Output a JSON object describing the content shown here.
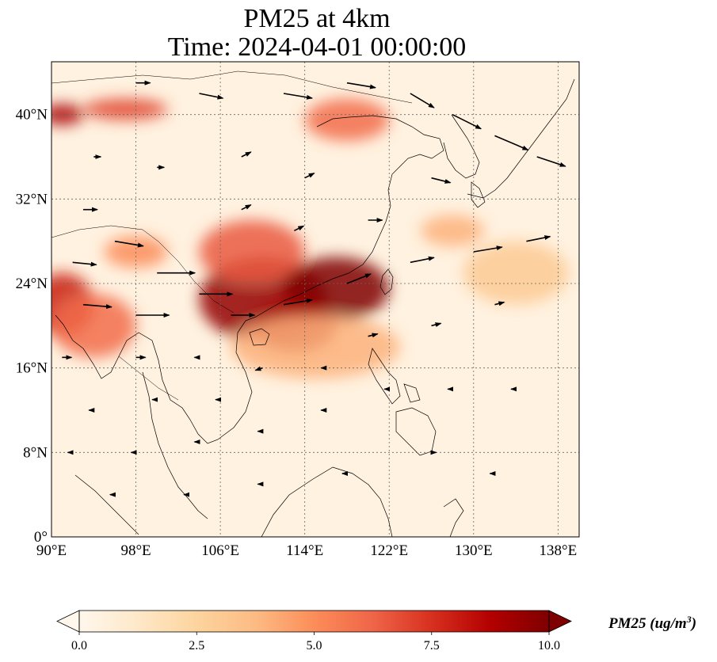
{
  "title": {
    "line1": "PM25 at 4km",
    "line2": "Time: 2024-04-01 00:00:00"
  },
  "map": {
    "lon_range": [
      90,
      140
    ],
    "lat_range": [
      0,
      45
    ],
    "lon_ticks": [
      {
        "value": 90,
        "label": "90°E"
      },
      {
        "value": 98,
        "label": "98°E"
      },
      {
        "value": 106,
        "label": "106°E"
      },
      {
        "value": 114,
        "label": "114°E"
      },
      {
        "value": 122,
        "label": "122°E"
      },
      {
        "value": 130,
        "label": "130°E"
      },
      {
        "value": 138,
        "label": "138°E"
      }
    ],
    "lat_ticks": [
      {
        "value": 0,
        "label": "0°"
      },
      {
        "value": 8,
        "label": "8°N"
      },
      {
        "value": 16,
        "label": "16°N"
      },
      {
        "value": 24,
        "label": "24°N"
      },
      {
        "value": 32,
        "label": "32°N"
      },
      {
        "value": 40,
        "label": "40°N"
      }
    ],
    "gridlines": true,
    "colormap": "OrRd",
    "plumes": [
      {
        "lon": 110,
        "lat": 22.5,
        "rx": 6,
        "ry": 4,
        "value": 9.5
      },
      {
        "lon": 117,
        "lat": 23.5,
        "rx": 5,
        "ry": 3,
        "value": 10
      },
      {
        "lon": 113,
        "lat": 20,
        "rx": 4,
        "ry": 2.5,
        "value": 9
      },
      {
        "lon": 109,
        "lat": 27,
        "rx": 5,
        "ry": 3,
        "value": 6.5
      },
      {
        "lon": 91,
        "lat": 22,
        "rx": 3,
        "ry": 3,
        "value": 8
      },
      {
        "lon": 94,
        "lat": 20,
        "rx": 4,
        "ry": 3,
        "value": 6
      },
      {
        "lon": 91,
        "lat": 40,
        "rx": 2,
        "ry": 1,
        "value": 9
      },
      {
        "lon": 97,
        "lat": 40.5,
        "rx": 4,
        "ry": 1,
        "value": 7
      },
      {
        "lon": 118,
        "lat": 39.5,
        "rx": 4,
        "ry": 2,
        "value": 6
      },
      {
        "lon": 98,
        "lat": 27,
        "rx": 3,
        "ry": 1.5,
        "value": 5
      },
      {
        "lon": 128,
        "lat": 29,
        "rx": 3,
        "ry": 1.5,
        "value": 4
      },
      {
        "lon": 134,
        "lat": 25,
        "rx": 5,
        "ry": 3,
        "value": 3
      },
      {
        "lon": 115,
        "lat": 18,
        "rx": 8,
        "ry": 3,
        "value": 4
      }
    ],
    "wind_vectors": [
      {
        "lon": 93,
        "lat": 31,
        "u": 3,
        "v": 0
      },
      {
        "lon": 96,
        "lat": 28,
        "u": 6,
        "v": -1
      },
      {
        "lon": 100,
        "lat": 25,
        "u": 8,
        "v": 0
      },
      {
        "lon": 104,
        "lat": 23,
        "u": 7,
        "v": 0
      },
      {
        "lon": 93,
        "lat": 22,
        "u": 6,
        "v": -0.5
      },
      {
        "lon": 98,
        "lat": 21,
        "u": 7,
        "v": 0
      },
      {
        "lon": 107,
        "lat": 21,
        "u": 5,
        "v": 0
      },
      {
        "lon": 112,
        "lat": 22,
        "u": 6,
        "v": 1
      },
      {
        "lon": 118,
        "lat": 24,
        "u": 5,
        "v": 2
      },
      {
        "lon": 124,
        "lat": 26,
        "u": 5,
        "v": 1
      },
      {
        "lon": 130,
        "lat": 27,
        "u": 6,
        "v": 1
      },
      {
        "lon": 135,
        "lat": 28,
        "u": 5,
        "v": 1
      },
      {
        "lon": 112,
        "lat": 42,
        "u": 6,
        "v": -1
      },
      {
        "lon": 118,
        "lat": 43,
        "u": 6,
        "v": -1
      },
      {
        "lon": 124,
        "lat": 42,
        "u": 5,
        "v": -3
      },
      {
        "lon": 128,
        "lat": 40,
        "u": 6,
        "v": -3
      },
      {
        "lon": 132,
        "lat": 38,
        "u": 7,
        "v": -3
      },
      {
        "lon": 136,
        "lat": 36,
        "u": 6,
        "v": -2
      },
      {
        "lon": 104,
        "lat": 42,
        "u": 5,
        "v": -1
      },
      {
        "lon": 98,
        "lat": 43,
        "u": 3,
        "v": 0
      },
      {
        "lon": 108,
        "lat": 36,
        "u": 2,
        "v": 1
      },
      {
        "lon": 114,
        "lat": 34,
        "u": 2,
        "v": 1
      },
      {
        "lon": 100,
        "lat": 35,
        "u": 1.5,
        "v": 0
      },
      {
        "lon": 94,
        "lat": 36,
        "u": 1.5,
        "v": 0
      },
      {
        "lon": 108,
        "lat": 31,
        "u": 2,
        "v": 1
      },
      {
        "lon": 113,
        "lat": 29,
        "u": 2,
        "v": 1
      },
      {
        "lon": 120,
        "lat": 30,
        "u": 3,
        "v": 0
      },
      {
        "lon": 126,
        "lat": 34,
        "u": 4,
        "v": -1
      },
      {
        "lon": 126,
        "lat": 20,
        "u": 2,
        "v": 0.5
      },
      {
        "lon": 132,
        "lat": 22,
        "u": 2,
        "v": 0.5
      },
      {
        "lon": 120,
        "lat": 19,
        "u": 2,
        "v": 0.5
      },
      {
        "lon": 122,
        "lat": 14,
        "u": -1,
        "v": 0
      },
      {
        "lon": 128,
        "lat": 14,
        "u": -1,
        "v": 0
      },
      {
        "lon": 134,
        "lat": 14,
        "u": -1,
        "v": 0
      },
      {
        "lon": 116,
        "lat": 12,
        "u": -1,
        "v": 0
      },
      {
        "lon": 110,
        "lat": 10,
        "u": -1,
        "v": 0
      },
      {
        "lon": 104,
        "lat": 9,
        "u": -1,
        "v": 0
      },
      {
        "lon": 98,
        "lat": 8,
        "u": -1,
        "v": 0
      },
      {
        "lon": 92,
        "lat": 8,
        "u": -1,
        "v": 0
      },
      {
        "lon": 94,
        "lat": 12,
        "u": -1,
        "v": 0
      },
      {
        "lon": 100,
        "lat": 13,
        "u": -1,
        "v": 0
      },
      {
        "lon": 106,
        "lat": 13,
        "u": -1,
        "v": 0
      },
      {
        "lon": 96,
        "lat": 4,
        "u": -1,
        "v": 0
      },
      {
        "lon": 103,
        "lat": 4,
        "u": -1,
        "v": 0
      },
      {
        "lon": 110,
        "lat": 5,
        "u": -1,
        "v": 0
      },
      {
        "lon": 118,
        "lat": 6,
        "u": -1,
        "v": 0
      },
      {
        "lon": 126,
        "lat": 8,
        "u": 1,
        "v": 0
      },
      {
        "lon": 132,
        "lat": 6,
        "u": -1,
        "v": 0
      },
      {
        "lon": 98,
        "lat": 17,
        "u": 2,
        "v": 0
      },
      {
        "lon": 104,
        "lat": 17,
        "u": -1,
        "v": 0
      },
      {
        "lon": 110,
        "lat": 16,
        "u": -1.5,
        "v": -0.5
      },
      {
        "lon": 116,
        "lat": 16,
        "u": -1,
        "v": 0
      },
      {
        "lon": 92,
        "lat": 26,
        "u": 5,
        "v": -0.5
      },
      {
        "lon": 91,
        "lat": 17,
        "u": 2,
        "v": 0
      }
    ]
  },
  "colorbar": {
    "min": 0,
    "max": 10,
    "ticks": [
      "0.0",
      "2.5",
      "5.0",
      "7.5",
      "10.0"
    ],
    "label": "PM25 (ug/m",
    "label_sup": "3",
    "label_close": ")",
    "colors": [
      "#fff7ec",
      "#fee8c8",
      "#fdd49e",
      "#fdbb84",
      "#fc8d59",
      "#ef6548",
      "#d7301f",
      "#b30000",
      "#7f0000"
    ]
  }
}
